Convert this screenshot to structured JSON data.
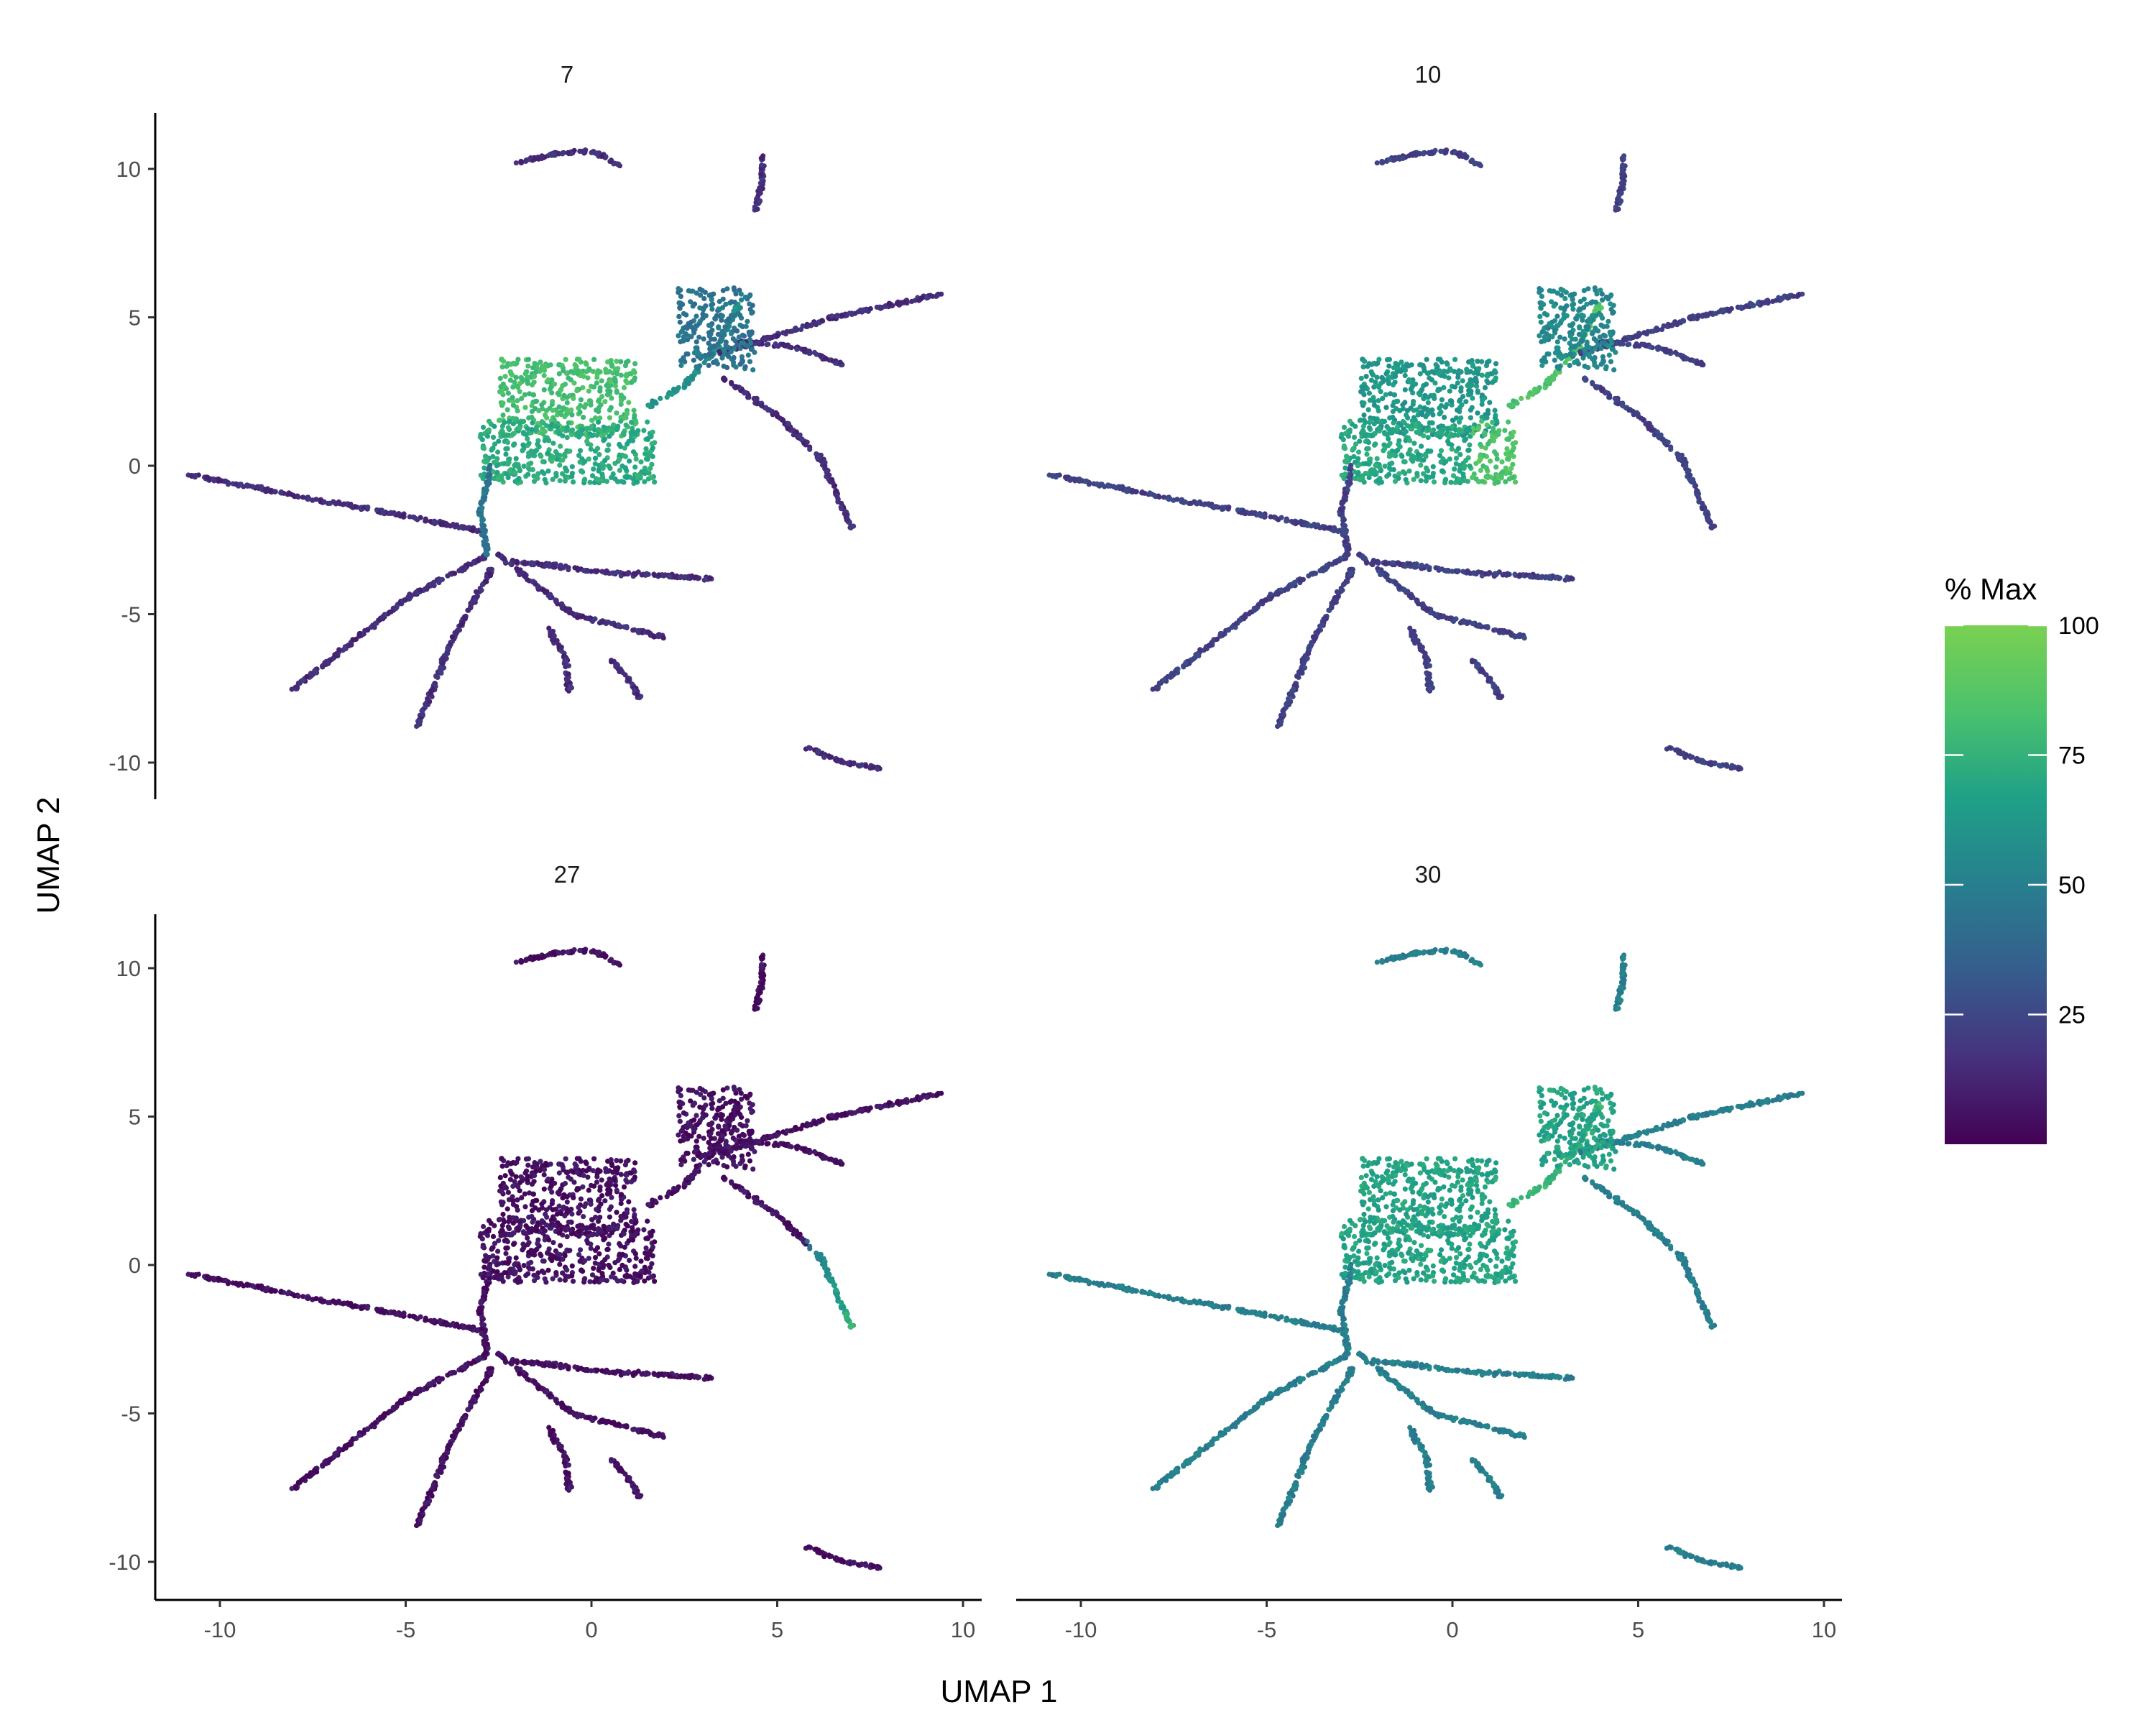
{
  "chart_data": {
    "type": "scatter",
    "xlabel": "UMAP 1",
    "ylabel": "UMAP 2",
    "xlim": [
      -11,
      10.5
    ],
    "ylim": [
      -11.3,
      11.8
    ],
    "xticks": [
      -10,
      -5,
      0,
      5,
      10
    ],
    "yticks": [
      -10,
      -5,
      0,
      5,
      10
    ],
    "xtick_labels": [
      "-10",
      "-5",
      "0",
      "5",
      "10"
    ],
    "ytick_labels": [
      "-10",
      "-5",
      "0",
      "5",
      "10"
    ],
    "grid": false,
    "color_scale": {
      "title": "% Max",
      "palette": "viridis",
      "min": 0,
      "max": 100,
      "ticks": [
        25,
        50,
        75,
        100
      ],
      "tick_labels": [
        "25",
        "50",
        "75",
        "100"
      ],
      "stops": [
        "#440154",
        "#46327e",
        "#365c8d",
        "#277f8e",
        "#1fa187",
        "#4ac16d",
        "#7ad151"
      ]
    },
    "legend_placement": "right",
    "facets": [
      {
        "label": "7",
        "high_region": "center",
        "base_level": 15
      },
      {
        "label": "10",
        "high_region": "center-right",
        "base_level": 22
      },
      {
        "label": "27",
        "high_region": "right-arm",
        "base_level": 5
      },
      {
        "label": "30",
        "high_region": "broad",
        "base_level": 45
      }
    ],
    "structures": [
      {
        "name": "top-arc",
        "points": [
          [
            -2.0,
            10.2
          ],
          [
            -1.0,
            10.5
          ],
          [
            0.0,
            10.6
          ],
          [
            0.8,
            10.1
          ]
        ]
      },
      {
        "name": "top-right-cluster",
        "points": [
          [
            4.6,
            10.4
          ],
          [
            4.6,
            9.5
          ],
          [
            4.4,
            8.6
          ]
        ]
      },
      {
        "name": "bottom-right-arc",
        "points": [
          [
            5.8,
            -9.5
          ],
          [
            6.8,
            -10.0
          ],
          [
            7.8,
            -10.2
          ]
        ]
      },
      {
        "name": "left-arm",
        "points": [
          [
            -10.8,
            -0.3
          ],
          [
            -8.0,
            -1.0
          ],
          [
            -5.0,
            -1.7
          ],
          [
            -3.0,
            -2.2
          ]
        ]
      },
      {
        "name": "lower-left-arm",
        "points": [
          [
            -2.8,
            -3.0
          ],
          [
            -5.0,
            -4.5
          ],
          [
            -8.0,
            -7.5
          ]
        ]
      },
      {
        "name": "lower-mid-arm",
        "points": [
          [
            -2.7,
            -3.5
          ],
          [
            -3.8,
            -6.0
          ],
          [
            -4.7,
            -8.8
          ]
        ]
      },
      {
        "name": "lower-arm-a",
        "points": [
          [
            -2.5,
            -3.0
          ],
          [
            -0.5,
            -5.0
          ],
          [
            2.0,
            -5.8
          ]
        ]
      },
      {
        "name": "lower-arm-b",
        "points": [
          [
            -2.2,
            -3.2
          ],
          [
            0.5,
            -3.6
          ],
          [
            3.3,
            -3.8
          ]
        ]
      },
      {
        "name": "lower-arm-c",
        "points": [
          [
            -1.2,
            -5.4
          ],
          [
            -0.7,
            -6.5
          ],
          [
            -0.6,
            -7.6
          ]
        ]
      },
      {
        "name": "lower-arm-d",
        "points": [
          [
            0.5,
            -6.5
          ],
          [
            1.0,
            -7.2
          ],
          [
            1.3,
            -7.8
          ]
        ]
      },
      {
        "name": "stem",
        "points": [
          [
            -2.8,
            -3.0
          ],
          [
            -3.0,
            -1.5
          ],
          [
            -2.7,
            0.0
          ]
        ]
      },
      {
        "name": "central-bridge",
        "points": [
          [
            1.5,
            2.0
          ],
          [
            2.5,
            2.7
          ],
          [
            3.4,
            4.0
          ],
          [
            4.0,
            5.5
          ]
        ]
      },
      {
        "name": "right-arm-long",
        "points": [
          [
            3.5,
            3.8
          ],
          [
            6.5,
            5.0
          ],
          [
            9.5,
            5.8
          ]
        ]
      },
      {
        "name": "right-arm-short",
        "points": [
          [
            4.0,
            4.2
          ],
          [
            5.5,
            4.0
          ],
          [
            6.8,
            3.4
          ]
        ]
      },
      {
        "name": "right-arm-down",
        "points": [
          [
            3.5,
            3.0
          ],
          [
            5.0,
            1.7
          ],
          [
            6.2,
            0.2
          ],
          [
            7.0,
            -2.1
          ]
        ]
      }
    ],
    "blobs": [
      {
        "name": "upper-block",
        "x": [
          -2.5,
          1.2
        ],
        "y": [
          1.0,
          3.6
        ]
      },
      {
        "name": "lower-block",
        "x": [
          -3.0,
          1.7
        ],
        "y": [
          -0.6,
          1.5
        ]
      },
      {
        "name": "top-cluster",
        "x": [
          2.3,
          4.4
        ],
        "y": [
          3.2,
          6.0
        ]
      }
    ]
  }
}
